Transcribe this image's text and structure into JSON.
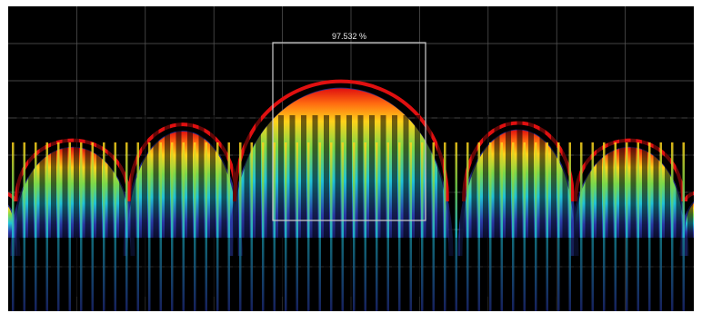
{
  "spectrum": {
    "measurement_value": "97.532 %",
    "colors": {
      "background": "#000000",
      "grid": "#5a5a5a",
      "measure_box": "#cfcfcf",
      "density_high": "#e01010",
      "density_mid_high": "#ffd21a",
      "density_mid": "#7bd84a",
      "density_mid_low": "#1fc2d8",
      "density_low": "#2a3aa8"
    },
    "grid": "on"
  }
}
